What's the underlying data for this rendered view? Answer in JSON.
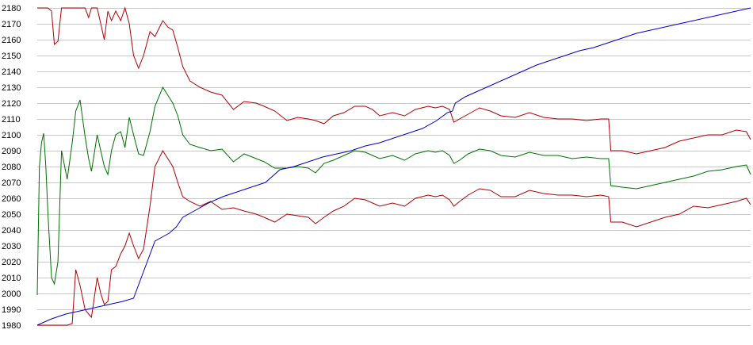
{
  "chart_data": {
    "type": "line",
    "title": "",
    "xlabel": "",
    "ylabel": "",
    "ylim": [
      1980,
      2180
    ],
    "yticks": [
      1980,
      1990,
      2000,
      2010,
      2020,
      2030,
      2040,
      2050,
      2060,
      2070,
      2080,
      2090,
      2100,
      2110,
      2120,
      2130,
      2140,
      2150,
      2160,
      2170,
      2180
    ],
    "xlim": [
      0,
      100
    ],
    "grid": true,
    "legend": "none",
    "colors": {
      "upper": "#b00000",
      "middle": "#007000",
      "lower": "#b00000",
      "trend": "#0000c8",
      "grid": "#c8c8c8",
      "background": "#ffffff"
    },
    "series": [
      {
        "key": "upper",
        "color": "#b00000",
        "x": [
          0,
          1.5,
          2.0,
          2.4,
          2.9,
          3.4,
          4.5,
          6.0,
          6.7,
          7.2,
          7.6,
          8.4,
          8.9,
          9.4,
          9.9,
          10.4,
          11.0,
          11.7,
          12.3,
          12.9,
          13.5,
          14.2,
          14.9,
          15.8,
          16.5,
          17.6,
          18.3,
          19.0,
          19.7,
          20.4,
          21.4,
          22.8,
          24.3,
          25.9,
          27.5,
          29.0,
          30.7,
          31.8,
          33.3,
          35.0,
          36.5,
          38.0,
          39.0,
          40.2,
          41.5,
          43.0,
          44.5,
          46.0,
          47.0,
          48.0,
          49.8,
          51.5,
          53.0,
          54.8,
          55.8,
          56.8,
          57.8,
          58.4,
          59.2,
          60.4,
          62.0,
          63.5,
          65.0,
          67.0,
          69.0,
          71.0,
          73.0,
          75.0,
          77.0,
          79.0,
          80.1,
          80.4,
          82.0,
          84.0,
          86.0,
          88.0,
          90.0,
          92.0,
          94.0,
          96.0,
          98.0,
          99.4,
          100.0
        ],
        "y": [
          2180,
          2180,
          2178,
          2157,
          2159,
          2180,
          2180,
          2180,
          2180,
          2174,
          2180,
          2180,
          2170,
          2160,
          2178,
          2172,
          2178,
          2172,
          2180,
          2170,
          2150,
          2142,
          2150,
          2165,
          2162,
          2172,
          2168,
          2166,
          2155,
          2143,
          2134,
          2130,
          2127,
          2125,
          2116,
          2121,
          2120,
          2118,
          2115,
          2109,
          2111,
          2110,
          2109,
          2107,
          2112,
          2114,
          2118,
          2118,
          2116,
          2112,
          2114,
          2112,
          2116,
          2118,
          2117,
          2118,
          2116,
          2108,
          2110,
          2113,
          2117,
          2115,
          2112,
          2111,
          2114,
          2111,
          2110,
          2110,
          2109,
          2110,
          2110,
          2090,
          2090,
          2088,
          2090,
          2092,
          2096,
          2098,
          2100,
          2100,
          2103,
          2102,
          2097
        ]
      },
      {
        "key": "middle",
        "color": "#007000",
        "x": [
          0,
          0.3,
          0.6,
          0.9,
          1.2,
          1.5,
          2.0,
          2.4,
          2.9,
          3.4,
          4.2,
          4.9,
          5.4,
          6.0,
          6.7,
          7.2,
          7.6,
          8.4,
          8.9,
          9.4,
          9.9,
          10.4,
          11.0,
          11.7,
          12.3,
          12.9,
          13.5,
          14.2,
          14.9,
          15.8,
          16.5,
          17.6,
          18.3,
          19.0,
          19.7,
          20.4,
          21.4,
          22.8,
          24.3,
          25.9,
          27.5,
          29.0,
          30.7,
          31.8,
          33.3,
          35.0,
          36.5,
          38.0,
          39.0,
          40.2,
          41.5,
          43.0,
          44.5,
          46.0,
          47.0,
          48.0,
          49.8,
          51.5,
          53.0,
          54.8,
          55.8,
          56.8,
          57.8,
          58.4,
          59.2,
          60.4,
          62.0,
          63.5,
          65.0,
          67.0,
          69.0,
          71.0,
          73.0,
          75.0,
          77.0,
          79.0,
          80.1,
          80.4,
          82.0,
          84.0,
          86.0,
          88.0,
          90.0,
          92.0,
          94.0,
          96.0,
          98.0,
          99.4,
          100.0
        ],
        "y": [
          1999,
          2080,
          2095,
          2101,
          2080,
          2050,
          2010,
          2006,
          2020,
          2090,
          2072,
          2095,
          2115,
          2122,
          2099,
          2085,
          2077,
          2100,
          2090,
          2080,
          2075,
          2090,
          2100,
          2102,
          2092,
          2111,
          2100,
          2088,
          2087,
          2102,
          2118,
          2130,
          2125,
          2120,
          2112,
          2100,
          2094,
          2092,
          2090,
          2091,
          2083,
          2088,
          2085,
          2083,
          2079,
          2079,
          2080,
          2079,
          2076,
          2082,
          2084,
          2087,
          2090,
          2089,
          2087,
          2085,
          2087,
          2084,
          2088,
          2090,
          2089,
          2090,
          2087,
          2082,
          2084,
          2088,
          2091,
          2090,
          2087,
          2086,
          2089,
          2087,
          2087,
          2085,
          2086,
          2085,
          2085,
          2068,
          2067,
          2066,
          2068,
          2070,
          2072,
          2074,
          2077,
          2078,
          2080,
          2081,
          2075
        ]
      },
      {
        "key": "lower",
        "color": "#b00000",
        "x": [
          0,
          1.5,
          2.0,
          2.4,
          2.9,
          3.4,
          4.2,
          4.9,
          5.4,
          6.0,
          6.7,
          7.2,
          7.6,
          8.4,
          8.9,
          9.4,
          9.9,
          10.4,
          11.0,
          11.7,
          12.3,
          12.9,
          13.5,
          14.2,
          14.9,
          15.8,
          16.5,
          17.6,
          18.3,
          19.0,
          19.7,
          20.4,
          21.4,
          22.8,
          24.3,
          25.9,
          27.5,
          29.0,
          30.7,
          31.8,
          33.3,
          35.0,
          36.5,
          38.0,
          39.0,
          40.2,
          41.5,
          43.0,
          44.5,
          46.0,
          47.0,
          48.0,
          49.8,
          51.5,
          53.0,
          54.8,
          55.8,
          56.8,
          57.8,
          58.4,
          59.2,
          60.4,
          62.0,
          63.5,
          65.0,
          67.0,
          69.0,
          71.0,
          73.0,
          75.0,
          77.0,
          79.0,
          80.1,
          80.4,
          82.0,
          84.0,
          86.0,
          88.0,
          90.0,
          92.0,
          94.0,
          96.0,
          98.0,
          99.4,
          100.0
        ],
        "y": [
          1980,
          1980,
          1980,
          1980,
          1980,
          1980,
          1980,
          1981,
          2015,
          2005,
          1990,
          1987,
          1985,
          2010,
          2000,
          1993,
          1995,
          2015,
          2017,
          2025,
          2030,
          2038,
          2030,
          2022,
          2028,
          2055,
          2080,
          2090,
          2085,
          2080,
          2070,
          2061,
          2058,
          2055,
          2058,
          2053,
          2054,
          2052,
          2050,
          2048,
          2045,
          2050,
          2049,
          2048,
          2044,
          2048,
          2052,
          2055,
          2060,
          2059,
          2057,
          2055,
          2057,
          2055,
          2060,
          2062,
          2061,
          2062,
          2059,
          2055,
          2058,
          2062,
          2066,
          2065,
          2061,
          2061,
          2065,
          2063,
          2062,
          2062,
          2061,
          2062,
          2061,
          2045,
          2045,
          2042,
          2045,
          2048,
          2050,
          2055,
          2054,
          2056,
          2058,
          2060,
          2056
        ]
      },
      {
        "key": "trend",
        "color": "#0000c8",
        "x": [
          0,
          2.0,
          4.0,
          6.0,
          8.0,
          10.0,
          12.0,
          13.5,
          15.0,
          16.5,
          17.7,
          18.5,
          19.5,
          20.4,
          22.0,
          24.0,
          26.0,
          28.0,
          30.0,
          32.0,
          34.0,
          36.0,
          38.0,
          40.0,
          42.0,
          44.0,
          46.0,
          48.0,
          50.0,
          52.0,
          54.0,
          56.0,
          57.5,
          58.2,
          58.6,
          60.0,
          62.0,
          64.0,
          66.0,
          68.0,
          70.0,
          72.0,
          74.0,
          76.0,
          78.0,
          80.0,
          82.0,
          84.0,
          86.0,
          88.0,
          90.0,
          92.0,
          94.0,
          96.0,
          98.0,
          100.0
        ],
        "y": [
          1980,
          1984,
          1987,
          1989,
          1991,
          1993,
          1995,
          1997,
          2015,
          2033,
          2036,
          2038,
          2042,
          2048,
          2052,
          2057,
          2061,
          2064,
          2067,
          2070,
          2078,
          2080,
          2083,
          2086,
          2088,
          2090,
          2093,
          2095,
          2098,
          2101,
          2104,
          2109,
          2114,
          2115,
          2120,
          2124,
          2128,
          2132,
          2136,
          2140,
          2144,
          2147,
          2150,
          2153,
          2155,
          2158,
          2161,
          2164,
          2166,
          2168,
          2170,
          2172,
          2174,
          2176,
          2178,
          2180
        ]
      }
    ]
  }
}
